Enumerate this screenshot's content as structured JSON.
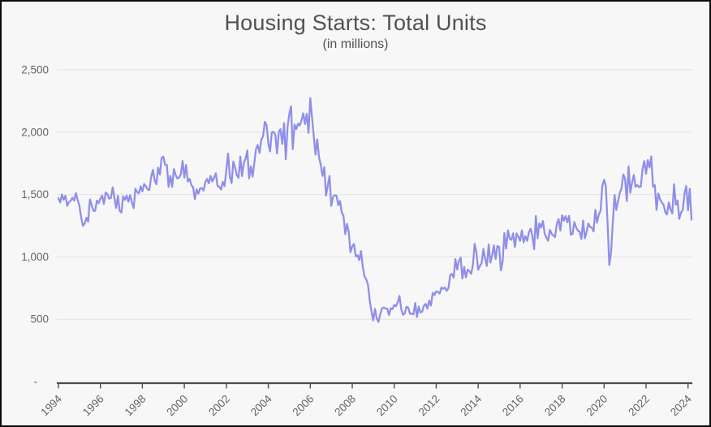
{
  "page": {
    "background": "#f7f7f7"
  },
  "chart_data": {
    "type": "line",
    "title": "Housing Starts: Total Units",
    "subtitle": "(in millions)",
    "legend": false,
    "grid": true,
    "x_axis": {
      "start_year": 1994,
      "frequency": "monthly",
      "tick_years": [
        1994,
        1996,
        1998,
        2000,
        2002,
        2004,
        2006,
        2008,
        2010,
        2012,
        2014,
        2016,
        2018,
        2020,
        2022,
        2024
      ]
    },
    "y_axis": {
      "min": 0,
      "max": 2500,
      "ticks": [
        {
          "value": 2500,
          "label": "2,500"
        },
        {
          "value": 2000,
          "label": "2,000"
        },
        {
          "value": 1500,
          "label": "1,500"
        },
        {
          "value": 1000,
          "label": "1,000"
        },
        {
          "value": 500,
          "label": "500"
        },
        {
          "value": 0,
          "label": "-",
          "dx": -14
        }
      ]
    },
    "series": [
      {
        "name": "Housing Starts: Total Units",
        "color": "#8f8fe9",
        "start": "1994-01",
        "values": [
          1470,
          1436,
          1500,
          1458,
          1490,
          1409,
          1439,
          1450,
          1474,
          1450,
          1511,
          1455,
          1407,
          1316,
          1249,
          1267,
          1314,
          1281,
          1461,
          1416,
          1369,
          1369,
          1452,
          1431,
          1467,
          1491,
          1424,
          1516,
          1504,
          1467,
          1472,
          1557,
          1475,
          1392,
          1489,
          1370,
          1355,
          1486,
          1457,
          1492,
          1442,
          1494,
          1437,
          1390,
          1546,
          1520,
          1510,
          1566,
          1525,
          1584,
          1567,
          1540,
          1536,
          1641,
          1698,
          1614,
          1582,
          1715,
          1660,
          1792,
          1804,
          1738,
          1737,
          1561,
          1649,
          1562,
          1704,
          1657,
          1628,
          1636,
          1663,
          1769,
          1636,
          1737,
          1604,
          1626,
          1575,
          1559,
          1463,
          1541,
          1507,
          1549,
          1551,
          1532,
          1600,
          1625,
          1590,
          1649,
          1605,
          1636,
          1670,
          1567,
          1562,
          1540,
          1602,
          1568,
          1698,
          1829,
          1642,
          1592,
          1764,
          1717,
          1655,
          1633,
          1804,
          1648,
          1753,
          1788,
          1853,
          1629,
          1726,
          1643,
          1751,
          1867,
          1897,
          1833,
          1939,
          1967,
          2083,
          2057,
          1911,
          1846,
          1998,
          2003,
          1981,
          1828,
          2002,
          2024,
          1905,
          2072,
          1782,
          2042,
          2144,
          2207,
          1864,
          2061,
          2025,
          2068,
          2054,
          2095,
          2151,
          2065,
          2147,
          1994,
          2273,
          2119,
          1969,
          1821,
          1942,
          1802,
          1737,
          1650,
          1720,
          1491,
          1570,
          1649,
          1409,
          1480,
          1495,
          1490,
          1415,
          1448,
          1354,
          1330,
          1183,
          1264,
          1197,
          1037,
          1084,
          1103,
          1005,
          1013,
          973,
          1046,
          923,
          844,
          820,
          777,
          652,
          560,
          490,
          582,
          505,
          478,
          540,
          585,
          594,
          586,
          585,
          534,
          588,
          581,
          614,
          604,
          636,
          687,
          583,
          536,
          546,
          599,
          594,
          543,
          545,
          539,
          630,
          517,
          600,
          554,
          561,
          608,
          623,
          585,
          650,
          610,
          711,
          694,
          723,
          718,
          706,
          754,
          744,
          754,
          728,
          749,
          854,
          863,
          834,
          982,
          898,
          969,
          994,
          826,
          919,
          835,
          898,
          885,
          863,
          936,
          1105,
          1034,
          897,
          928,
          950,
          1063,
          984,
          927,
          1098,
          955,
          1012,
          1092,
          983,
          1087,
          1080,
          891,
          963,
          1190,
          1067,
          1213,
          1147,
          1136,
          1189,
          1079,
          1188,
          1160,
          1128,
          1213,
          1116,
          1166,
          1128,
          1195,
          1226,
          1168,
          1062,
          1328,
          1149,
          1268,
          1236,
          1288,
          1189,
          1154,
          1129,
          1217,
          1185,
          1172,
          1158,
          1265,
          1303,
          1210,
          1334,
          1290,
          1327,
          1276,
          1329,
          1177,
          1184,
          1279,
          1237,
          1211,
          1202,
          1142,
          1291,
          1149,
          1199,
          1267,
          1241,
          1233,
          1204,
          1377,
          1274,
          1340,
          1371,
          1569,
          1617,
          1567,
          1269,
          934,
          1038,
          1273,
          1497,
          1376,
          1448,
          1514,
          1551,
          1661,
          1625,
          1447,
          1725,
          1514,
          1594,
          1657,
          1562,
          1576,
          1559,
          1563,
          1706,
          1768,
          1666,
          1777,
          1716,
          1805,
          1562,
          1575,
          1377,
          1508,
          1463,
          1434,
          1419,
          1357,
          1340,
          1436,
          1380,
          1348,
          1583,
          1418,
          1451,
          1305,
          1356,
          1376,
          1510,
          1568,
          1374,
          1546,
          1299
        ]
      }
    ]
  }
}
